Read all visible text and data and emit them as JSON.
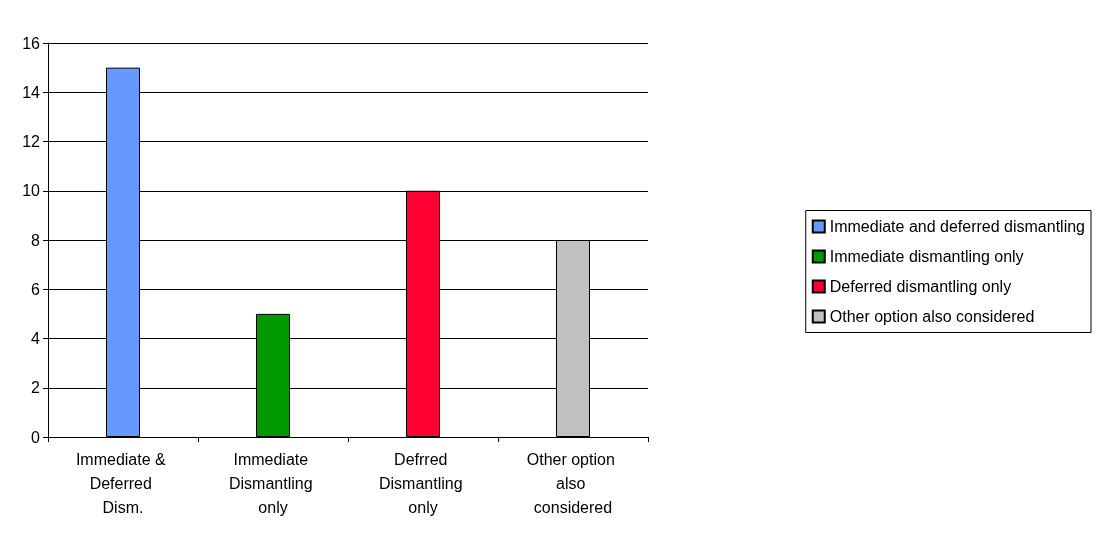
{
  "chart_data": {
    "type": "bar",
    "categories": [
      "Immediate & Deferred Dism.",
      "Immediate Dismantling only",
      "Defrred Dismantling only",
      "Other option also considered"
    ],
    "series": [
      {
        "name": "Immediate and deferred dismantling",
        "color": "#6699ff",
        "values": [
          15,
          null,
          null,
          null
        ]
      },
      {
        "name": "Immediate dismantling only",
        "color": "#009900",
        "values": [
          null,
          5,
          null,
          null
        ]
      },
      {
        "name": "Deferred dismantling only",
        "color": "#ff0033",
        "values": [
          null,
          null,
          10,
          null
        ]
      },
      {
        "name": "Other option also considered",
        "color": "#c0c0c0",
        "values": [
          null,
          null,
          null,
          8
        ]
      }
    ],
    "ylim": [
      0,
      16
    ],
    "yticks": [
      0,
      2,
      4,
      6,
      8,
      10,
      12,
      14,
      16
    ],
    "grid": "y",
    "legend": "right"
  }
}
